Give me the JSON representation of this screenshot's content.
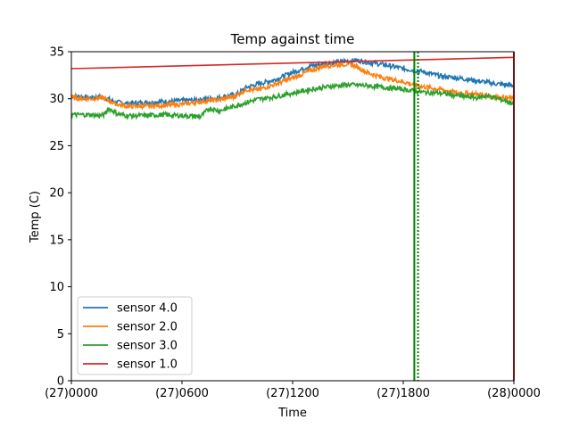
{
  "chart_data": {
    "type": "line",
    "title": "Temp against  time",
    "xlabel": "Time",
    "ylabel": "Temp (C)",
    "xlim": [
      0,
      24
    ],
    "ylim": [
      0,
      35
    ],
    "x_unit": "hours from (27)0000",
    "x_ticks": [
      {
        "value": 0,
        "label": "(27)0000"
      },
      {
        "value": 6,
        "label": "(27)0600"
      },
      {
        "value": 12,
        "label": "(27)1200"
      },
      {
        "value": 18,
        "label": "(27)1800"
      },
      {
        "value": 24,
        "label": "(28)0000"
      }
    ],
    "y_ticks": [
      0,
      5,
      10,
      15,
      20,
      25,
      30,
      35
    ],
    "grid": false,
    "legend_position": "lower-left",
    "series": [
      {
        "name": "sensor 4.0",
        "color": "#1f77b4",
        "points": [
          [
            0,
            30.3
          ],
          [
            0.5,
            30.2
          ],
          [
            1,
            30.1
          ],
          [
            1.5,
            30.2
          ],
          [
            2,
            30.0
          ],
          [
            2.3,
            29.7
          ],
          [
            2.6,
            29.6
          ],
          [
            3,
            29.5
          ],
          [
            4,
            29.6
          ],
          [
            5,
            29.7
          ],
          [
            6,
            29.8
          ],
          [
            7,
            29.9
          ],
          [
            8,
            30.1
          ],
          [
            9,
            30.5
          ],
          [
            9.5,
            31.2
          ],
          [
            10,
            31.5
          ],
          [
            11,
            32.0
          ],
          [
            12,
            32.8
          ],
          [
            13,
            33.5
          ],
          [
            14,
            33.8
          ],
          [
            15,
            34.0
          ],
          [
            15.5,
            34.1
          ],
          [
            16,
            33.9
          ],
          [
            17,
            33.6
          ],
          [
            18,
            33.2
          ],
          [
            19,
            32.9
          ],
          [
            20,
            32.4
          ],
          [
            21,
            32.2
          ],
          [
            22,
            31.9
          ],
          [
            23,
            31.6
          ],
          [
            24,
            31.4
          ]
        ]
      },
      {
        "name": "sensor 2.0",
        "color": "#ff7f0e",
        "points": [
          [
            0,
            30.1
          ],
          [
            1,
            30.0
          ],
          [
            1.7,
            30.1
          ],
          [
            2,
            29.8
          ],
          [
            2.5,
            29.4
          ],
          [
            3,
            29.2
          ],
          [
            4,
            29.2
          ],
          [
            5,
            29.3
          ],
          [
            6,
            29.4
          ],
          [
            7,
            29.7
          ],
          [
            8,
            29.9
          ],
          [
            8.8,
            30.2
          ],
          [
            9.5,
            31.0
          ],
          [
            10,
            30.9
          ],
          [
            11,
            31.5
          ],
          [
            12,
            32.2
          ],
          [
            13,
            33.0
          ],
          [
            13.7,
            33.5
          ],
          [
            14.5,
            33.6
          ],
          [
            15,
            33.7
          ],
          [
            15.5,
            33.4
          ],
          [
            16,
            32.8
          ],
          [
            17,
            32.2
          ],
          [
            18,
            31.8
          ],
          [
            19,
            31.3
          ],
          [
            20,
            31.0
          ],
          [
            21,
            30.6
          ],
          [
            22,
            30.5
          ],
          [
            23,
            30.2
          ],
          [
            24,
            30.0
          ]
        ]
      },
      {
        "name": "sensor 3.0",
        "color": "#2ca02c",
        "points": [
          [
            0,
            28.3
          ],
          [
            1,
            28.3
          ],
          [
            1.5,
            28.2
          ],
          [
            1.8,
            28.3
          ],
          [
            2,
            29.0
          ],
          [
            2.5,
            28.4
          ],
          [
            3,
            28.2
          ],
          [
            4,
            28.2
          ],
          [
            5,
            28.3
          ],
          [
            6,
            28.2
          ],
          [
            7,
            28.1
          ],
          [
            7.5,
            29.0
          ],
          [
            8,
            28.7
          ],
          [
            9,
            29.3
          ],
          [
            10,
            29.9
          ],
          [
            11,
            30.2
          ],
          [
            12,
            30.6
          ],
          [
            13,
            31.0
          ],
          [
            14,
            31.3
          ],
          [
            15,
            31.5
          ],
          [
            16,
            31.4
          ],
          [
            17,
            31.2
          ],
          [
            18,
            31.0
          ],
          [
            19,
            30.7
          ],
          [
            20,
            30.6
          ],
          [
            21,
            30.3
          ],
          [
            22,
            30.1
          ],
          [
            22.5,
            30.3
          ],
          [
            23,
            30.1
          ],
          [
            24,
            29.5
          ]
        ]
      },
      {
        "name": "sensor 1.0",
        "color": "#d62728",
        "points": [
          [
            0,
            33.2
          ],
          [
            24,
            34.4
          ]
        ]
      }
    ],
    "vertical_lines": [
      {
        "x": 18.6,
        "color": "#008000",
        "style": "solid"
      },
      {
        "x": 18.8,
        "color": "#008000",
        "style": "dotted"
      },
      {
        "x": 24,
        "color": "#d62728",
        "style": "solid"
      }
    ]
  }
}
